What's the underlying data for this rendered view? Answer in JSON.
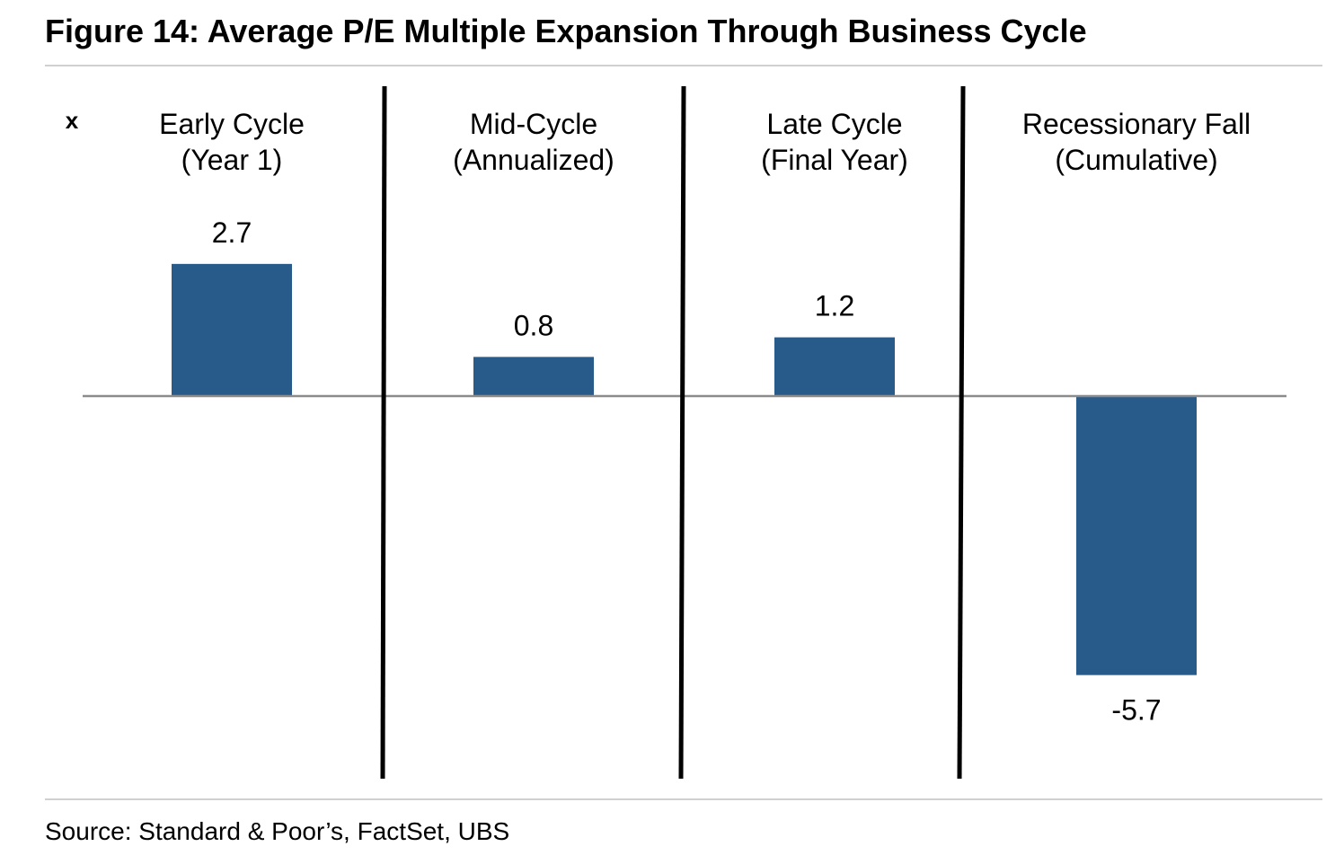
{
  "figure": {
    "title": "Figure 14: Average P/E Multiple Expansion Through Business Cycle",
    "source": "Source: Standard & Poor’s, FactSet, UBS"
  },
  "chart_data": {
    "type": "bar",
    "unit_label": "x",
    "categories": [
      [
        "Early Cycle",
        "(Year 1)"
      ],
      [
        "Mid-Cycle",
        "(Annualized)"
      ],
      [
        "Late Cycle",
        "(Final Year)"
      ],
      [
        "Recessionary Fall",
        "(Cumulative)"
      ]
    ],
    "values": [
      2.7,
      0.8,
      1.2,
      -5.7
    ],
    "data_labels": [
      "2.7",
      "0.8",
      "1.2",
      "-5.7"
    ],
    "ylim": [
      -7.8,
      4.3
    ],
    "bar_color": "#285b8a",
    "zero_line_color": "#8c8c8c",
    "divider_color": "#000000",
    "grid": false,
    "legend": "none"
  }
}
